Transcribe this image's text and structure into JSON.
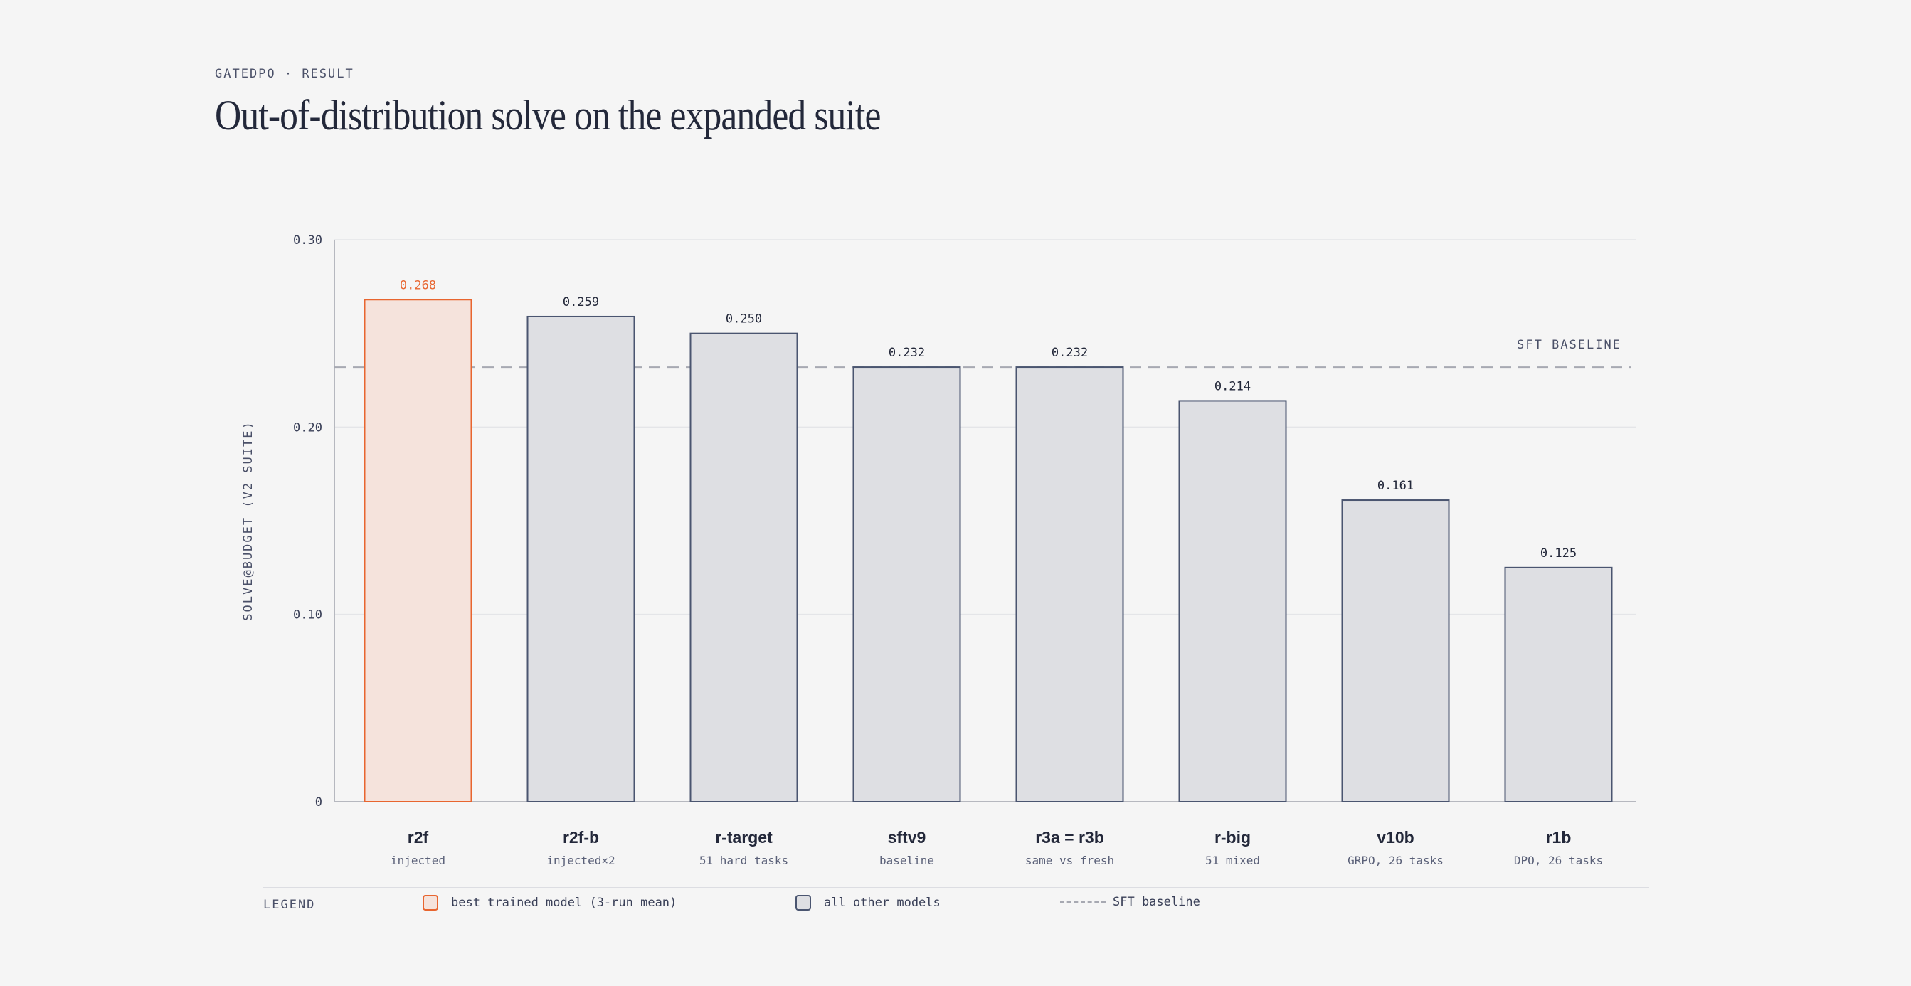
{
  "header": {
    "eyebrow": "GATEDPO · RESULT",
    "title": "Out-of-distribution solve on the expanded suite"
  },
  "colors": {
    "accent": "#e8652f",
    "accent_fill": "#f5e3dc",
    "bar_stroke": "#4a5570",
    "bar_fill": "#dedfe3",
    "baseline": "#a7a9b2",
    "text": "#23283a"
  },
  "chart_data": {
    "type": "bar",
    "ylabel": "SOLVE@BUDGET (V2 SUITE)",
    "ylim": [
      0,
      0.3
    ],
    "yticks": [
      {
        "value": 0,
        "label": "0"
      },
      {
        "value": 0.1,
        "label": "0.10"
      },
      {
        "value": 0.2,
        "label": "0.20"
      },
      {
        "value": 0.3,
        "label": "0.30"
      }
    ],
    "grid": true,
    "categories": [
      "r2f",
      "r2f-b",
      "r-target",
      "sftv9",
      "r3a = r3b",
      "r-big",
      "v10b",
      "r1b"
    ],
    "subtitles": [
      "injected",
      "injected×2",
      "51 hard tasks",
      "baseline",
      "same vs fresh",
      "51 mixed",
      "GRPO, 26 tasks",
      "DPO, 26 tasks"
    ],
    "values": [
      0.268,
      0.259,
      0.25,
      0.232,
      0.232,
      0.214,
      0.161,
      0.125
    ],
    "value_labels": [
      "0.268",
      "0.259",
      "0.250",
      "0.232",
      "0.232",
      "0.214",
      "0.161",
      "0.125"
    ],
    "highlight_index": 0,
    "baseline": {
      "value": 0.232,
      "label": "SFT BASELINE"
    }
  },
  "legend": {
    "title": "LEGEND",
    "items": [
      {
        "label": "best trained model (3-run mean)"
      },
      {
        "label": "all other models"
      },
      {
        "label": "SFT baseline"
      }
    ]
  }
}
